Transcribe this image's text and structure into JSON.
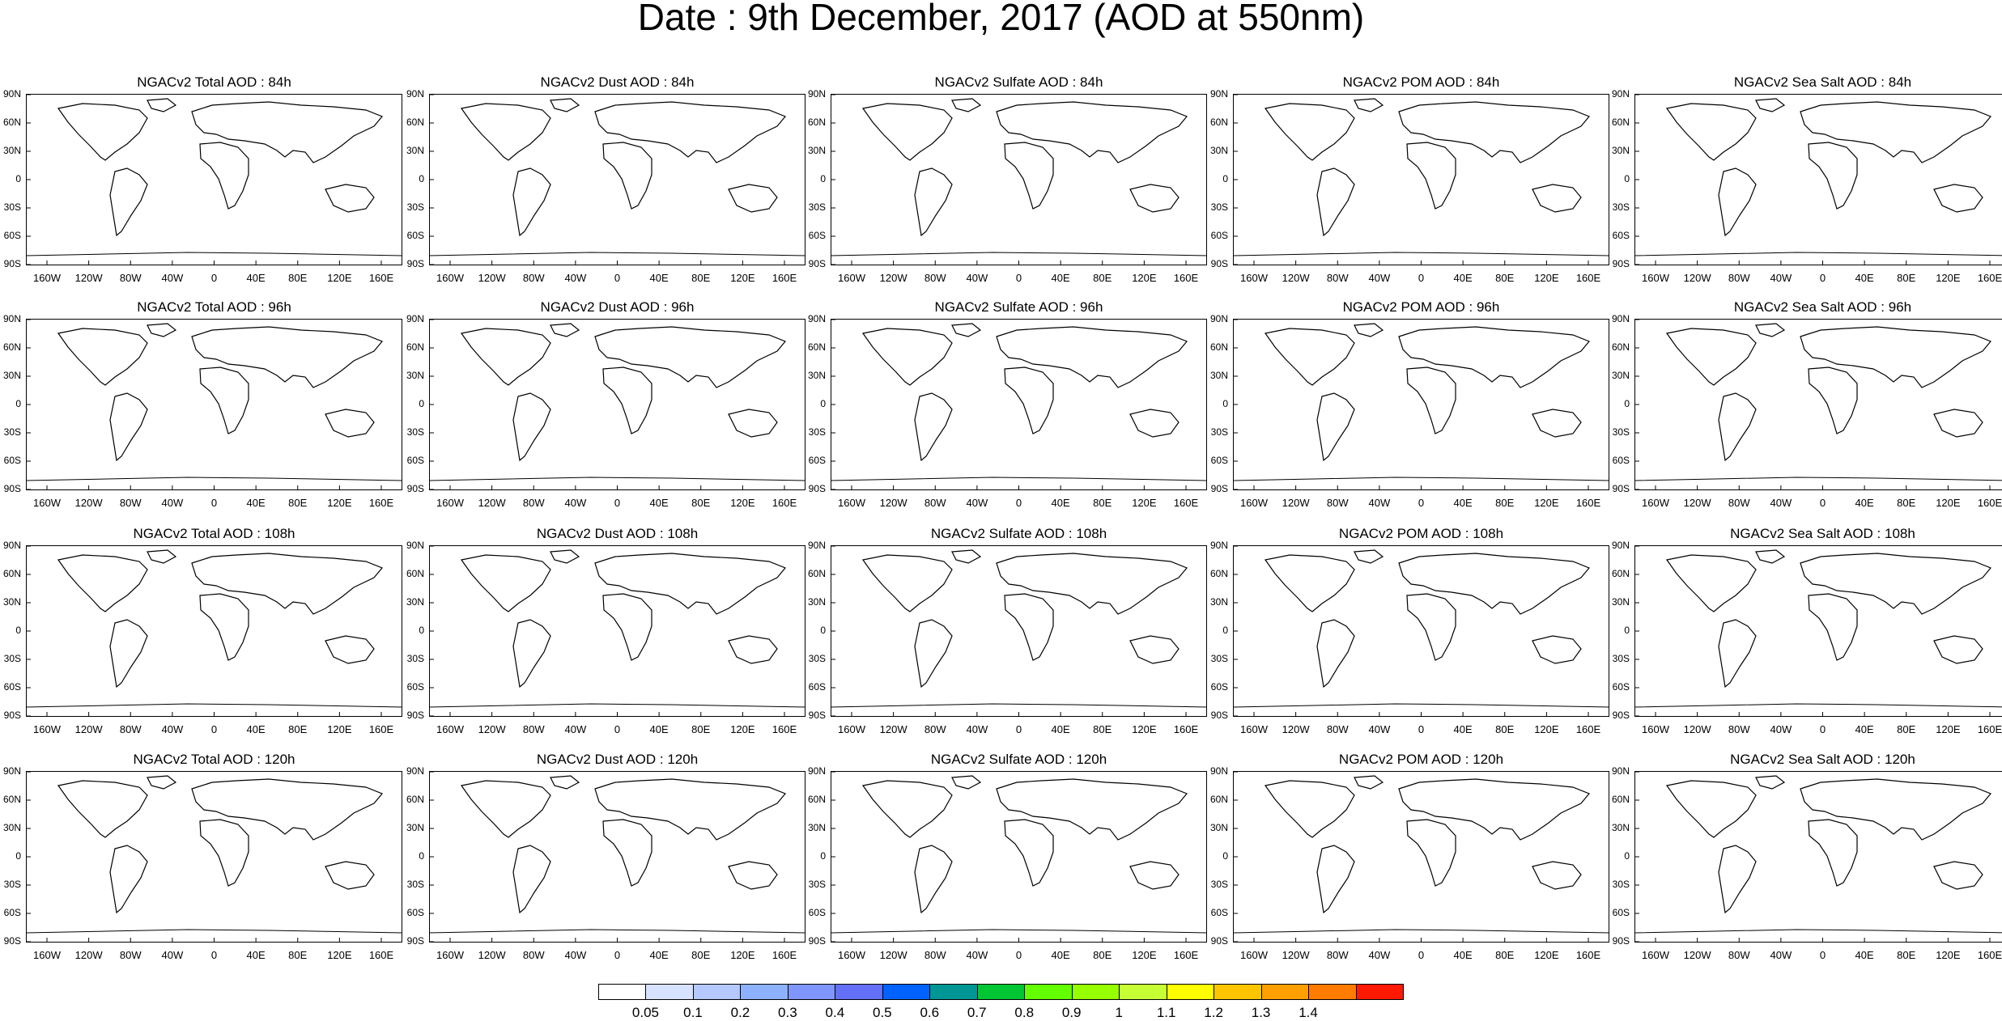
{
  "title": "Date : 9th December, 2017 (AOD at 550nm)",
  "lat_labels": [
    "90N",
    "60N",
    "30N",
    "0",
    "30S",
    "60S",
    "90S"
  ],
  "lon_labels": [
    "160W",
    "120W",
    "80W",
    "40W",
    "0",
    "40E",
    "80E",
    "120E",
    "160E"
  ],
  "variables": [
    {
      "key": "total",
      "label": "Total AOD"
    },
    {
      "key": "dust",
      "label": "Dust AOD"
    },
    {
      "key": "sulfate",
      "label": "Sulfate AOD"
    },
    {
      "key": "pom",
      "label": "POM AOD"
    },
    {
      "key": "seasalt",
      "label": "Sea Salt AOD"
    }
  ],
  "forecast_hours": [
    "84h",
    "96h",
    "108h",
    "120h"
  ],
  "panel_titles": [
    [
      "NGACv2 Total AOD : 84h",
      "NGACv2 Dust AOD : 84h",
      "NGACv2 Sulfate AOD : 84h",
      "NGACv2 POM AOD : 84h",
      "NGACv2 Sea Salt AOD : 84h"
    ],
    [
      "NGACv2 Total AOD : 96h",
      "NGACv2 Dust AOD : 96h",
      "NGACv2 Sulfate AOD : 96h",
      "NGACv2 POM AOD : 96h",
      "NGACv2 Sea Salt AOD : 96h"
    ],
    [
      "NGACv2 Total AOD : 108h",
      "NGACv2 Dust AOD : 108h",
      "NGACv2 Sulfate AOD : 108h",
      "NGACv2 POM AOD : 108h",
      "NGACv2 Sea Salt AOD : 108h"
    ],
    [
      "NGACv2 Total AOD : 120h",
      "NGACv2 Dust AOD : 120h",
      "NGACv2 Sulfate AOD : 120h",
      "NGACv2 POM AOD : 120h",
      "NGACv2 Sea Salt  AOD : 120h"
    ]
  ],
  "colorbar": {
    "labels": [
      "0.05",
      "0.1",
      "0.2",
      "0.3",
      "0.4",
      "0.5",
      "0.6",
      "0.7",
      "0.8",
      "0.9",
      "1",
      "1.1",
      "1.2",
      "1.3",
      "1.4"
    ],
    "colors": [
      "#ffffff",
      "#d6e2ff",
      "#b5c9ff",
      "#8eb2ff",
      "#7f96ff",
      "#6370f7",
      "#0063ff",
      "#009696",
      "#00c633",
      "#63ff00",
      "#96ff00",
      "#c6ff33",
      "#ffff00",
      "#ffc600",
      "#ffa000",
      "#ff7c00",
      "#ff1900"
    ]
  }
}
